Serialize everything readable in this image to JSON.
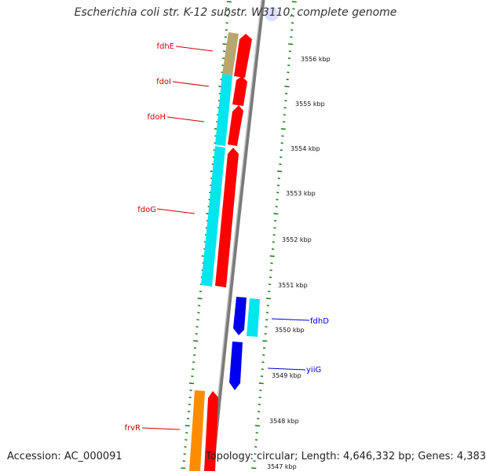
{
  "title": "Escherichia coli str. K-12 substr. W3110, complete genome",
  "footer": {
    "accession": "Accession: AC_000091",
    "topology": "Topology: circular; Length: 4,646,332 bp; Genes: 4,383"
  },
  "colors": {
    "forward_cds": "#ff0000",
    "reverse_cds": "#0000ee",
    "forward_other": "#00e5ee",
    "gc_skew": "#b8a76c",
    "orange_feature": "#ff8c00",
    "backbone": "#808080",
    "tick": "#1a7a1a",
    "label_forward": "#cc0000",
    "label_reverse": "#0000cc"
  },
  "scale_labels": [
    "3556 kbp",
    "3555 kbp",
    "3554 kbp",
    "3553 kbp",
    "3552 kbp",
    "3551 kbp",
    "3550 kbp",
    "3549 kbp",
    "3548 kbp",
    "3547 kbp"
  ],
  "gene_labels": [
    {
      "name": "fdhE",
      "strand": "forward"
    },
    {
      "name": "fdoI",
      "strand": "forward"
    },
    {
      "name": "fdoH",
      "strand": "forward"
    },
    {
      "name": "fdoG",
      "strand": "forward"
    },
    {
      "name": "fdhD",
      "strand": "reverse"
    },
    {
      "name": "yiiG",
      "strand": "reverse"
    },
    {
      "name": "frvR",
      "strand": "forward"
    }
  ]
}
